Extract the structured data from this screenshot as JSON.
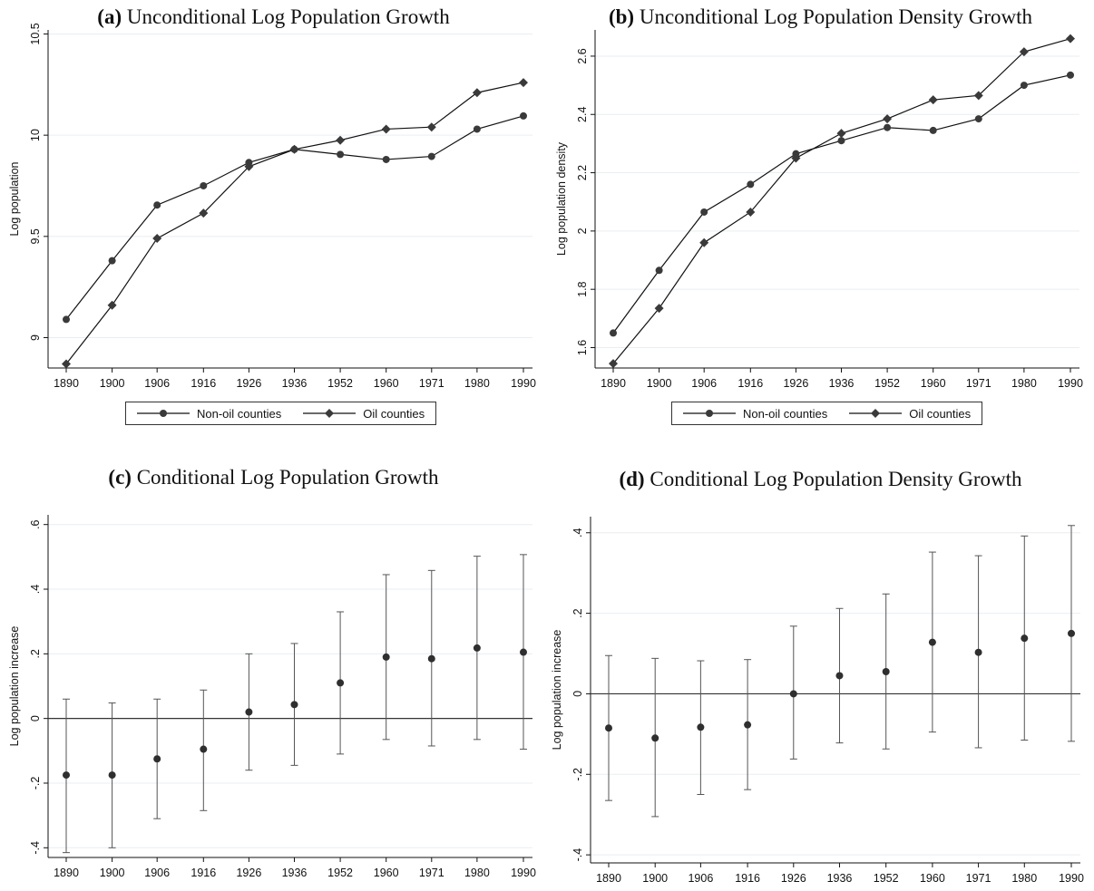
{
  "chart_data": [
    {
      "type": "line",
      "panel_label": "(a)",
      "title": "Unconditional Log Population Growth",
      "ylabel": "Log population",
      "x": [
        1890,
        1900,
        1906,
        1916,
        1926,
        1936,
        1952,
        1960,
        1971,
        1980,
        1990
      ],
      "xticks": [
        "1890",
        "1900",
        "1906",
        "1916",
        "1926",
        "1936",
        "1952",
        "1960",
        "1971",
        "1980",
        "1990"
      ],
      "yticks": [
        9,
        9.5,
        10,
        10.5
      ],
      "ytick_labels": [
        "9",
        "9.5",
        "10",
        "10.5"
      ],
      "ylim": [
        8.85,
        10.52
      ],
      "grid": true,
      "legend_position": "bottom",
      "series": [
        {
          "name": "Non-oil counties",
          "marker": "circle",
          "values": [
            9.09,
            9.38,
            9.655,
            9.75,
            9.865,
            9.93,
            9.905,
            9.88,
            9.895,
            10.03,
            10.095
          ]
        },
        {
          "name": "Oil counties",
          "marker": "diamond",
          "values": [
            8.87,
            9.16,
            9.49,
            9.615,
            9.845,
            9.93,
            9.975,
            10.03,
            10.04,
            10.21,
            10.26
          ]
        }
      ]
    },
    {
      "type": "line",
      "panel_label": "(b)",
      "title": "Unconditional Log Population Density Growth",
      "ylabel": "Log population density",
      "x": [
        1890,
        1900,
        1906,
        1916,
        1926,
        1936,
        1952,
        1960,
        1971,
        1980,
        1990
      ],
      "xticks": [
        "1890",
        "1900",
        "1906",
        "1916",
        "1926",
        "1936",
        "1952",
        "1960",
        "1971",
        "1980",
        "1990"
      ],
      "yticks": [
        1.6,
        1.8,
        2,
        2.2,
        2.4,
        2.6
      ],
      "ytick_labels": [
        "1.6",
        "1.8",
        "2",
        "2.2",
        "2.4",
        "2.6"
      ],
      "ylim": [
        1.53,
        2.69
      ],
      "grid": true,
      "legend_position": "bottom",
      "series": [
        {
          "name": "Non-oil counties",
          "marker": "circle",
          "values": [
            1.65,
            1.865,
            2.065,
            2.16,
            2.265,
            2.31,
            2.355,
            2.345,
            2.385,
            2.5,
            2.535
          ]
        },
        {
          "name": "Oil counties",
          "marker": "diamond",
          "values": [
            1.545,
            1.735,
            1.96,
            2.065,
            2.25,
            2.335,
            2.385,
            2.45,
            2.465,
            2.615,
            2.66
          ]
        }
      ]
    },
    {
      "type": "scatter",
      "panel_label": "(c)",
      "title": "Conditional Log Population Growth",
      "ylabel": "Log population increase",
      "x": [
        1890,
        1900,
        1906,
        1916,
        1926,
        1936,
        1952,
        1960,
        1971,
        1980,
        1990
      ],
      "xticks": [
        "1890",
        "1900",
        "1906",
        "1916",
        "1926",
        "1936",
        "1952",
        "1960",
        "1971",
        "1980",
        "1990"
      ],
      "yticks": [
        -0.4,
        -0.2,
        0,
        0.2,
        0.4,
        0.6
      ],
      "ytick_labels": [
        "-.4",
        "-.2",
        "0",
        ".2",
        ".4",
        ".6"
      ],
      "ylim": [
        -0.43,
        0.63
      ],
      "grid": true,
      "reference_line": 0,
      "series": [
        {
          "values": [
            -0.175,
            -0.175,
            -0.125,
            -0.095,
            0.02,
            0.043,
            0.11,
            0.19,
            0.185,
            0.218,
            0.205
          ],
          "lower": [
            -0.415,
            -0.4,
            -0.31,
            -0.285,
            -0.16,
            -0.145,
            -0.11,
            -0.065,
            -0.085,
            -0.065,
            -0.095
          ],
          "upper": [
            0.06,
            0.048,
            0.06,
            0.088,
            0.2,
            0.232,
            0.33,
            0.445,
            0.458,
            0.502,
            0.507
          ]
        }
      ]
    },
    {
      "type": "scatter",
      "panel_label": "(d)",
      "title": "Conditional Log Population Density Growth",
      "ylabel": "Log population increase",
      "x": [
        1890,
        1900,
        1906,
        1916,
        1926,
        1936,
        1952,
        1960,
        1971,
        1980,
        1990
      ],
      "xticks": [
        "1890",
        "1900",
        "1906",
        "1916",
        "1926",
        "1936",
        "1952",
        "1960",
        "1971",
        "1980",
        "1990"
      ],
      "yticks": [
        -0.4,
        -0.2,
        0,
        0.2,
        0.4
      ],
      "ytick_labels": [
        "-.4",
        "-.2",
        "0",
        ".2",
        ".4"
      ],
      "ylim": [
        -0.42,
        0.44
      ],
      "grid": true,
      "reference_line": 0,
      "series": [
        {
          "values": [
            -0.085,
            -0.11,
            -0.083,
            -0.077,
            0.0,
            0.045,
            0.055,
            0.128,
            0.103,
            0.138,
            0.15
          ],
          "lower": [
            -0.265,
            -0.305,
            -0.25,
            -0.238,
            -0.162,
            -0.122,
            -0.137,
            -0.095,
            -0.134,
            -0.115,
            -0.118
          ],
          "upper": [
            0.095,
            0.088,
            0.082,
            0.085,
            0.168,
            0.212,
            0.248,
            0.352,
            0.343,
            0.392,
            0.418
          ]
        }
      ]
    }
  ]
}
